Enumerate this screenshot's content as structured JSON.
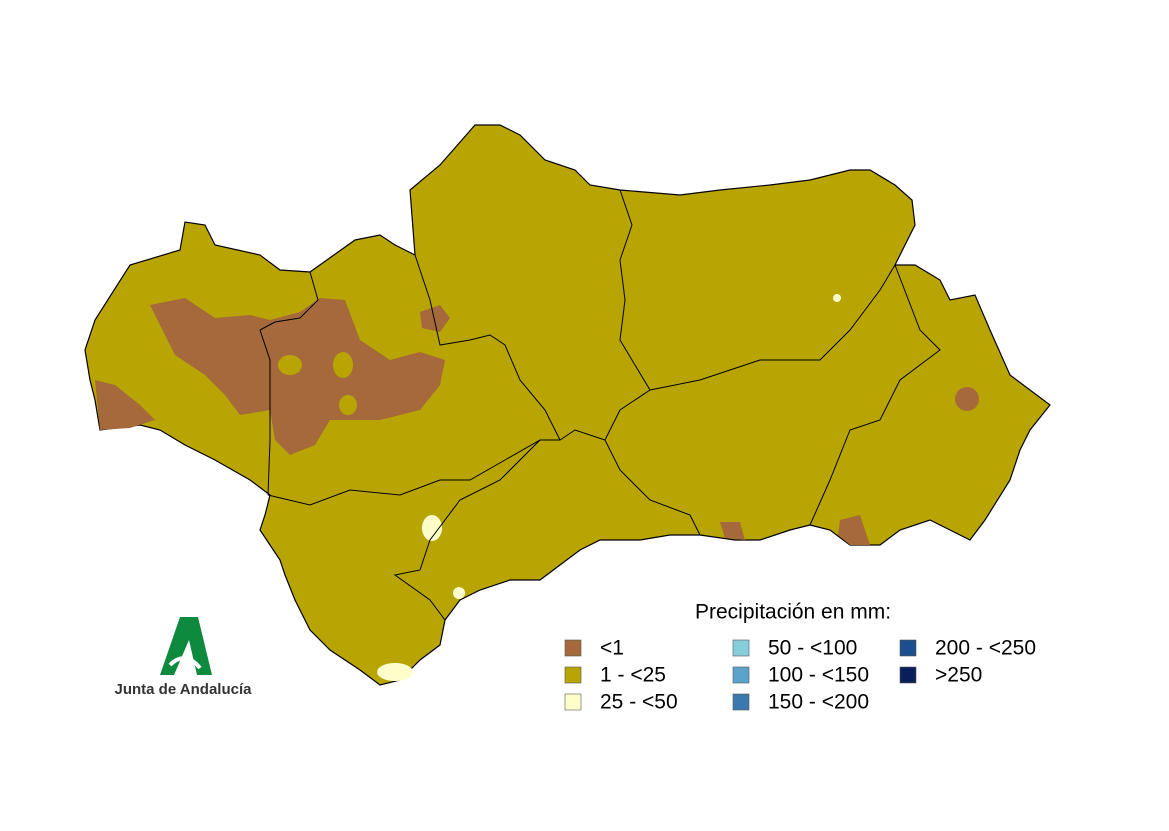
{
  "legend": {
    "title": "Precipitación en mm:",
    "items": [
      {
        "label": "<1",
        "color": "#a5693b"
      },
      {
        "label": "1 - <25",
        "color": "#b8a402"
      },
      {
        "label": "25 - <50",
        "color": "#ffffcc"
      },
      {
        "label": "50 - <100",
        "color": "#86cfd9"
      },
      {
        "label": "100 - <150",
        "color": "#5ba3cb"
      },
      {
        "label": "150 - <200",
        "color": "#3a78ae"
      },
      {
        "label": "200 - <250",
        "color": "#1d4f8f"
      },
      {
        "label": ">250",
        "color": "#0a1f5a"
      }
    ]
  },
  "logo": {
    "text": "Junta de Andalucía"
  }
}
